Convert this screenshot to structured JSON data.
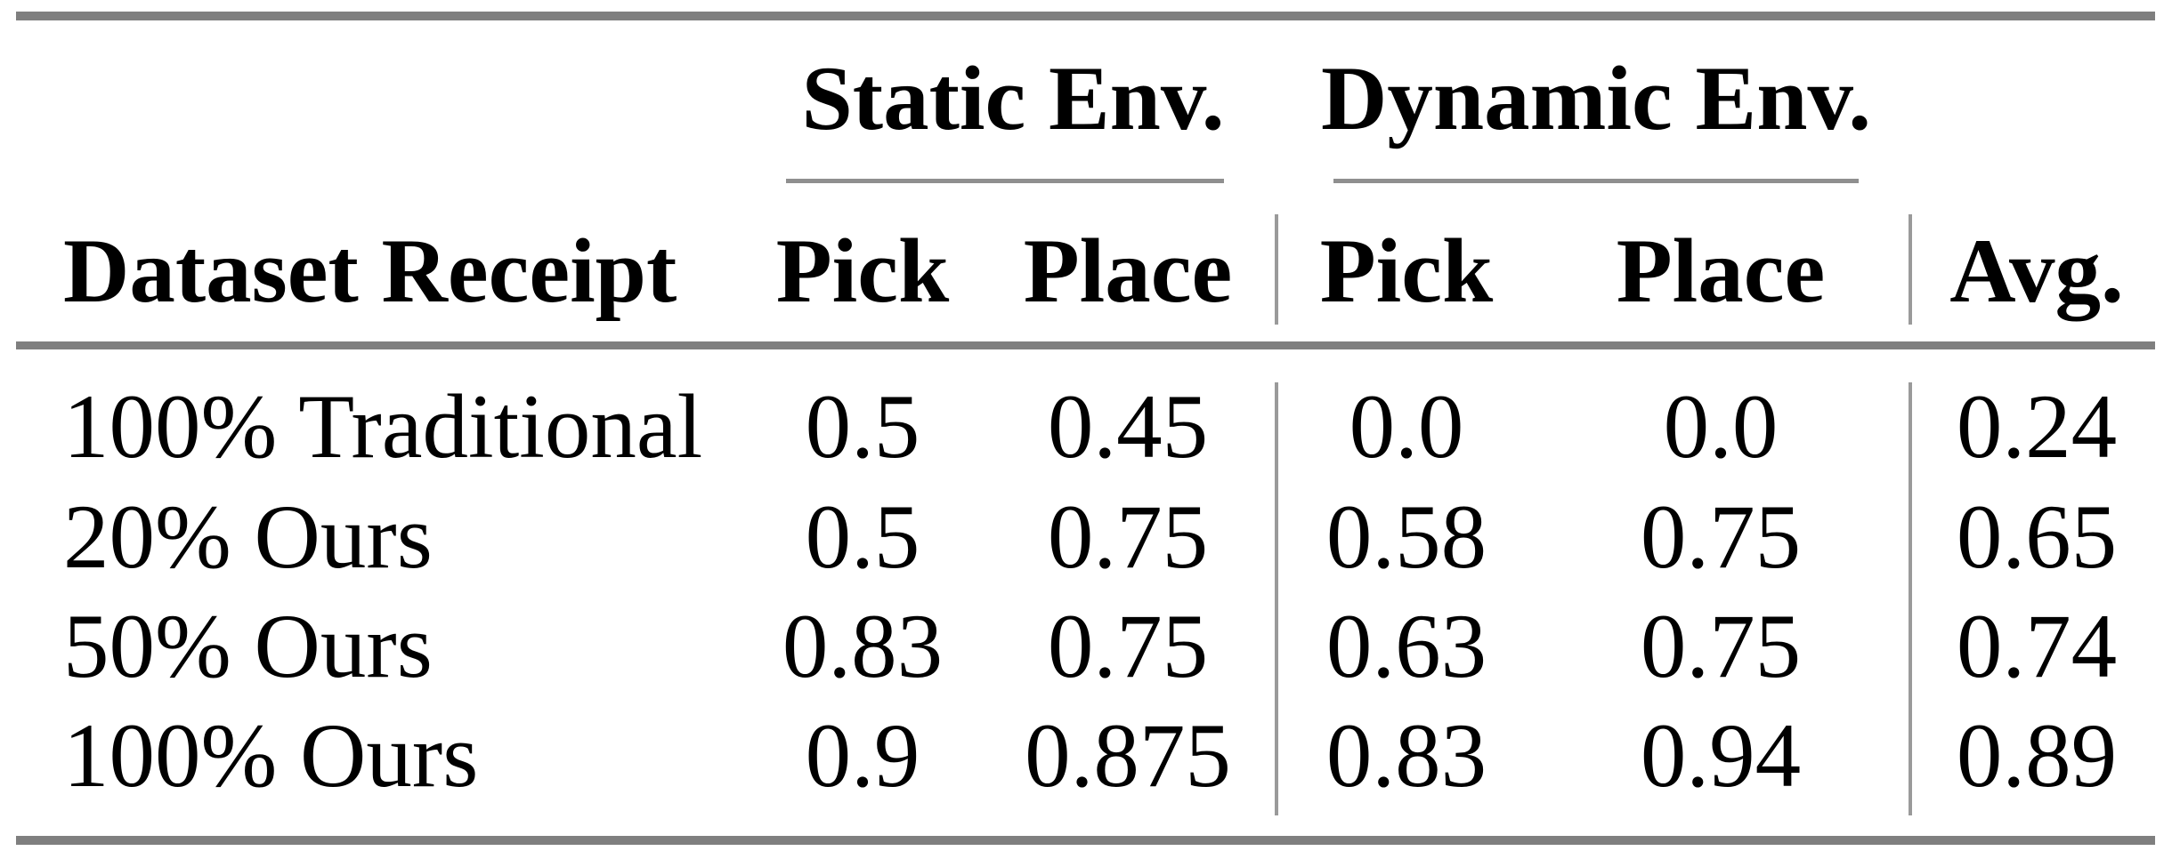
{
  "table": {
    "groups": [
      {
        "label": "Static Env."
      },
      {
        "label": "Dynamic Env."
      }
    ],
    "header": {
      "row_label": "Dataset Receipt",
      "static_pick": "Pick",
      "static_place": "Place",
      "dynamic_pick": "Pick",
      "dynamic_place": "Place",
      "avg": "Avg."
    },
    "rows": [
      {
        "label": "100% Traditional",
        "static_pick": "0.5",
        "static_place": "0.45",
        "dynamic_pick": "0.0",
        "dynamic_place": "0.0",
        "avg": "0.24"
      },
      {
        "label": "20% Ours",
        "static_pick": "0.5",
        "static_place": "0.75",
        "dynamic_pick": "0.58",
        "dynamic_place": "0.75",
        "avg": "0.65"
      },
      {
        "label": "50% Ours",
        "static_pick": "0.83",
        "static_place": "0.75",
        "dynamic_pick": "0.63",
        "dynamic_place": "0.75",
        "avg": "0.74"
      },
      {
        "label": "100% Ours",
        "static_pick": "0.9",
        "static_place": "0.875",
        "dynamic_pick": "0.83",
        "dynamic_place": "0.94",
        "avg": "0.89"
      }
    ]
  },
  "colors": {
    "heavy_rule": "#7f7f7f",
    "light_rule": "#8f8f8f",
    "vertical_rule": "#9a9a9a",
    "text": "#000000",
    "background": "#ffffff"
  },
  "chart_data": {
    "type": "table",
    "title": "",
    "column_groups": [
      "Static Env.",
      "Dynamic Env."
    ],
    "columns": [
      "Dataset Receipt",
      "Static Env. Pick",
      "Static Env. Place",
      "Dynamic Env. Pick",
      "Dynamic Env. Place",
      "Avg."
    ],
    "rows": [
      [
        "100% Traditional",
        0.5,
        0.45,
        0.0,
        0.0,
        0.24
      ],
      [
        "20% Ours",
        0.5,
        0.75,
        0.58,
        0.75,
        0.65
      ],
      [
        "50% Ours",
        0.83,
        0.75,
        0.63,
        0.75,
        0.74
      ],
      [
        "100% Ours",
        0.9,
        0.875,
        0.83,
        0.94,
        0.89
      ]
    ]
  }
}
